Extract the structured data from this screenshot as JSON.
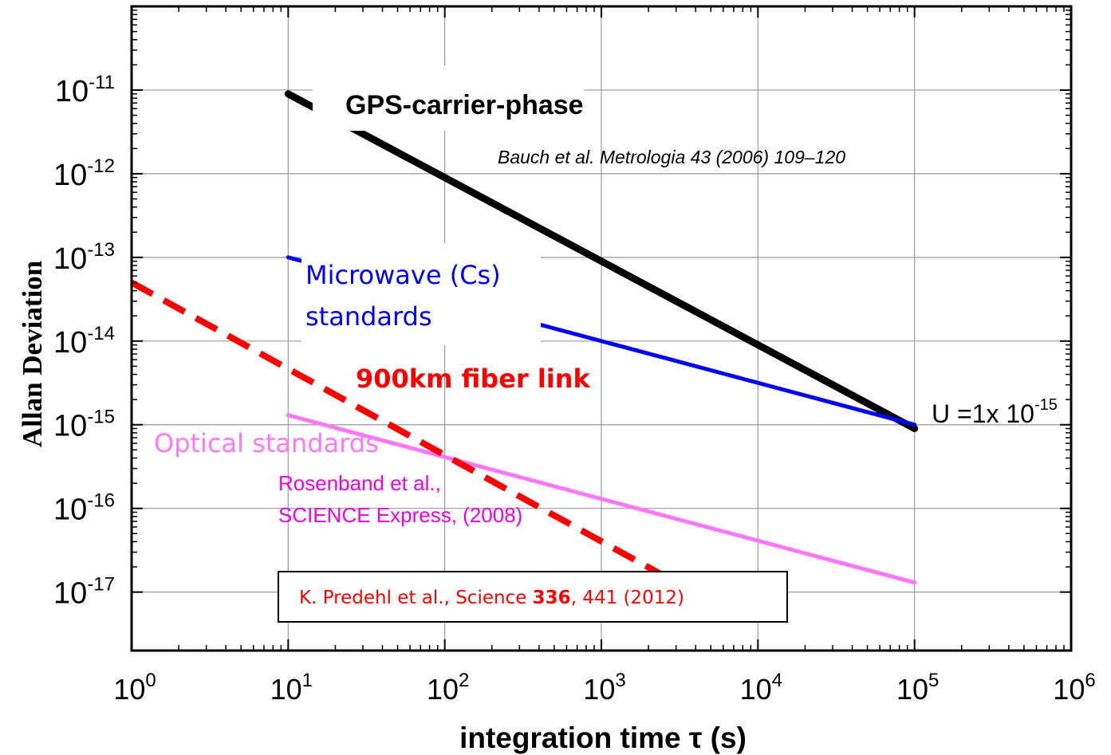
{
  "chart_data": {
    "type": "line",
    "xlabel": "integration time τ (s)",
    "ylabel": "Allan Deviation",
    "xscale": "log",
    "yscale": "log",
    "xlim": [
      1,
      1000000
    ],
    "ylim": [
      2e-18,
      1e-10
    ],
    "grid": true,
    "x_ticks": [
      {
        "value": 1,
        "base": "10",
        "exp": "0"
      },
      {
        "value": 10,
        "base": "10",
        "exp": "1"
      },
      {
        "value": 100,
        "base": "10",
        "exp": "2"
      },
      {
        "value": 1000,
        "base": "10",
        "exp": "3"
      },
      {
        "value": 10000,
        "base": "10",
        "exp": "4"
      },
      {
        "value": 100000,
        "base": "10",
        "exp": "5"
      },
      {
        "value": 1000000,
        "base": "10",
        "exp": "6"
      }
    ],
    "y_ticks": [
      {
        "value": 1e-11,
        "base": "10",
        "exp": "-11"
      },
      {
        "value": 1e-12,
        "base": "10",
        "exp": "-12"
      },
      {
        "value": 1e-13,
        "base": "10",
        "exp": "-13"
      },
      {
        "value": 1e-14,
        "base": "10",
        "exp": "-14"
      },
      {
        "value": 1e-15,
        "base": "10",
        "exp": "-15"
      },
      {
        "value": 1e-16,
        "base": "10",
        "exp": "-16"
      },
      {
        "value": 1e-17,
        "base": "10",
        "exp": "-17"
      }
    ],
    "series": [
      {
        "color": "#000000",
        "style": "solid",
        "x": [
          10,
          100000
        ],
        "y": [
          9e-12,
          9e-16
        ]
      },
      {
        "color": "#0000ff",
        "style": "solid",
        "x": [
          10,
          100000
        ],
        "y": [
          1e-13,
          1e-15
        ]
      },
      {
        "color": "#ff77ff",
        "style": "solid",
        "x": [
          10,
          100000
        ],
        "y": [
          1.3e-15,
          1.3e-17
        ]
      },
      {
        "color": "#ff0000",
        "style": "dashed",
        "x": [
          1,
          3000
        ],
        "y": [
          5e-14,
          1.3e-17
        ]
      }
    ],
    "annotations": [
      {
        "text": "GPS-carrier-phase",
        "color": "#000000"
      },
      {
        "text": "Bauch et al. Metrologia 43 (2006) 109–120",
        "color": "#000000"
      },
      {
        "text": "Microwave (Cs)",
        "color": "#0000ff"
      },
      {
        "text": "standards",
        "color": "#0000ff"
      },
      {
        "text": "900km fiber link",
        "color": "#ff0000"
      },
      {
        "text": "Optical standards",
        "color": "#ff77ff"
      },
      {
        "text": "Rosenband et al.,",
        "color": "#ee00ee"
      },
      {
        "text": "SCIENCE Express, (2008)",
        "color": "#ee00ee"
      },
      {
        "text": "U =1x 10",
        "sup": "-15",
        "color": "#000000"
      }
    ],
    "citation": {
      "prefix": "K. Predehl et al., Science ",
      "volume": "336",
      "suffix": ", 441 (2012)",
      "color": "#ff0000"
    }
  }
}
